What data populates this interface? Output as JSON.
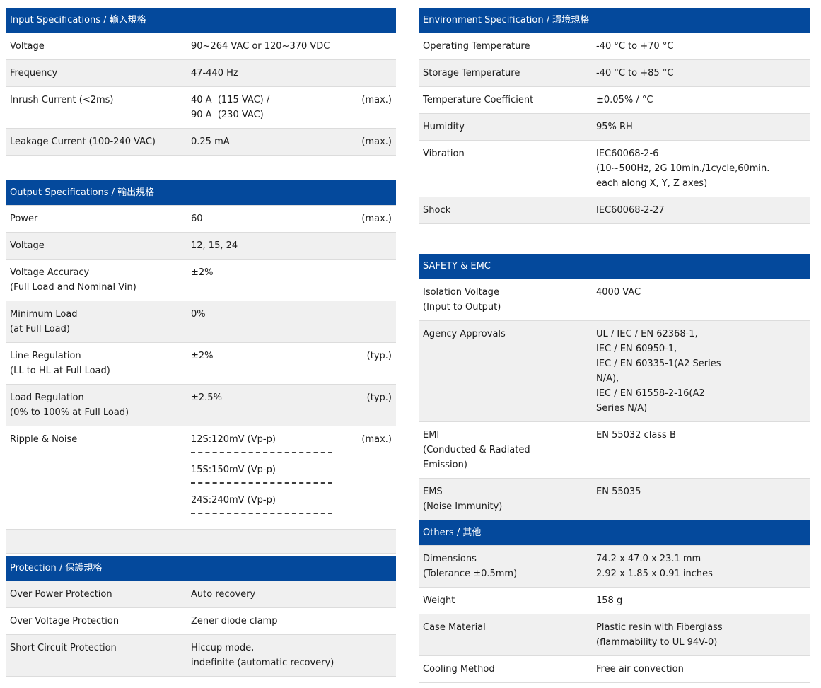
{
  "colors": {
    "header_bg": "#04499c",
    "header_text": "#ffffff",
    "row_shade": "#f0f0f0",
    "row_border": "#dcdcdc",
    "text": "#1b1b1b"
  },
  "tables": [
    {
      "name": "input-specifications-table",
      "header": "Input Specifications / 輸入規格",
      "rows": [
        {
          "label": "Voltage",
          "value": "90~264 VAC or 120~370 VDC",
          "note": ""
        },
        {
          "label": "Frequency",
          "value": "47-440 Hz",
          "note": ""
        },
        {
          "label": "Inrush Current (<2ms)",
          "value": "40 A  (115 VAC) /\n90 A  (230 VAC)",
          "note": "(max.)"
        },
        {
          "label": "Leakage Current (100-240 VAC)",
          "value": "0.25 mA",
          "note": "(max.)"
        }
      ]
    },
    {
      "name": "output-and-protection-specifications-table",
      "header": "Output Specifications / 輸出規格",
      "rows": [
        {
          "label": "Power",
          "value": "60",
          "note": "(max.)"
        },
        {
          "label": "Voltage",
          "value": "12, 15, 24",
          "note": ""
        },
        {
          "label": "Voltage Accuracy\n(Full Load and Nominal Vin)",
          "value": "±2%",
          "note": ""
        },
        {
          "label": "Minimum Load\n(at Full Load)",
          "value": "0%",
          "note": ""
        },
        {
          "label": "Line Regulation\n(LL to HL at Full Load)",
          "value": "±2%",
          "note": "(typ.)"
        },
        {
          "label": "Load Regulation\n(0% to 100% at Full Load)",
          "value": "±2.5%",
          "note": "(typ.)"
        },
        {
          "label": "Ripple & Noise",
          "value_groups": [
            "12S:120mV (Vp-p)",
            "15S:150mV (Vp-p)",
            "24S:240mV (Vp-p)"
          ],
          "note": "(max.)"
        },
        {
          "type": "empty"
        },
        {
          "type": "spacer"
        },
        {
          "type": "header",
          "label": "Protection / 保護規格"
        },
        {
          "label": "Over Power Protection",
          "value": "Auto recovery",
          "note": ""
        },
        {
          "label": "Over Voltage Protection",
          "value": "Zener diode clamp",
          "note": ""
        },
        {
          "label": "Short Circuit Protection",
          "value": "Hiccup mode,\nindefinite (automatic recovery)",
          "note": ""
        }
      ]
    },
    {
      "name": "environment-specification-table",
      "header": "Environment Specification / 環境規格",
      "rows": [
        {
          "label": "Operating Temperature",
          "value": "-40 °C to +70 °C"
        },
        {
          "label": "Storage Temperature",
          "value": "-40 °C to +85 °C"
        },
        {
          "label": "Temperature Coefficient",
          "value": "±0.05% / °C"
        },
        {
          "label": "Humidity",
          "value": "95% RH"
        },
        {
          "label": "Vibration",
          "value": "IEC60068-2-6\n(10~500Hz, 2G 10min./1cycle,60min.\neach along X, Y, Z axes)"
        },
        {
          "label": "Shock",
          "value": "IEC60068-2-27"
        }
      ]
    },
    {
      "name": "safety-emc-and-others-table",
      "header": "SAFETY & EMC",
      "rows": [
        {
          "label": "Isolation Voltage\n(Input to Output)",
          "value": "4000 VAC"
        },
        {
          "label": "Agency Approvals",
          "value": "UL / IEC / EN 62368-1,\nIEC / EN 60950-1,\nIEC / EN 60335-1(A2 Series\nN/A),\nIEC / EN 61558-2-16(A2\nSeries N/A)"
        },
        {
          "label": "EMI\n(Conducted & Radiated\nEmission)",
          "value": "EN 55032 class B"
        },
        {
          "label": "EMS\n(Noise Immunity)",
          "value": "EN 55035"
        },
        {
          "type": "header",
          "label": "Others / 其他"
        },
        {
          "label": "Dimensions\n(Tolerance ±0.5mm)",
          "value": "74.2 x 47.0 x 23.1 mm\n2.92 x 1.85 x 0.91 inches"
        },
        {
          "label": "Weight",
          "value": "158 g"
        },
        {
          "label": "Case Material",
          "value": "Plastic resin with Fiberglass\n(flammability to UL 94V-0)"
        },
        {
          "label": "Cooling Method",
          "value": "Free air convection"
        }
      ]
    }
  ]
}
